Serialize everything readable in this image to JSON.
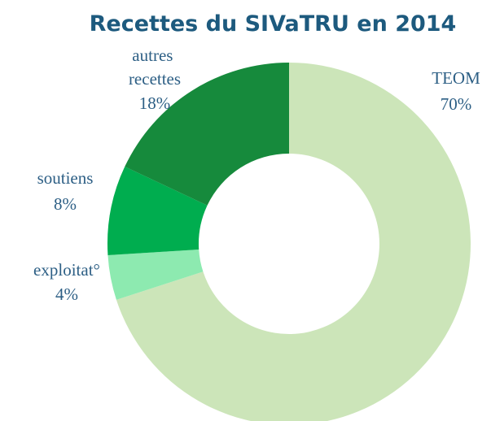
{
  "chart_data": {
    "type": "donut",
    "title": "Recettes du SIVaTRU en 2014",
    "categories": [
      "TEOM",
      "exploitat°",
      "soutiens",
      "autres recettes"
    ],
    "values": [
      70,
      4,
      8,
      18
    ],
    "value_labels": [
      "70%",
      "4%",
      "8%",
      "18%"
    ],
    "colors": [
      "#cce5b9",
      "#8deab0",
      "#00ad4f",
      "#168a3c"
    ]
  }
}
